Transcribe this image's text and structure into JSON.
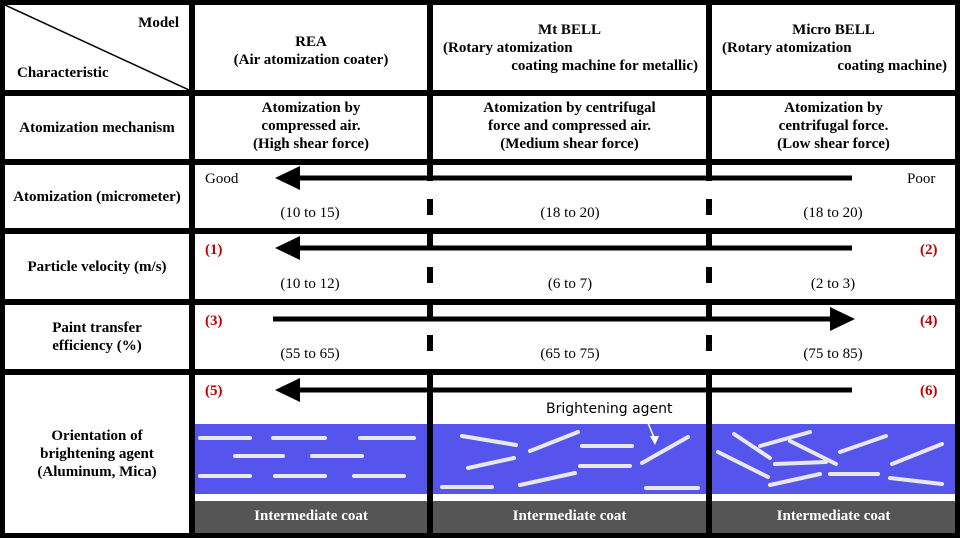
{
  "corner": {
    "top": "Model",
    "bottom": "Characteristic"
  },
  "columns": [
    {
      "name": "REA",
      "sub1": "(Air atomization coater)",
      "sub2": ""
    },
    {
      "name": "Mt BELL",
      "sub1": "(Rotary atomization",
      "sub2": "coating machine for metallic)"
    },
    {
      "name": "Micro BELL",
      "sub1": "(Rotary atomization",
      "sub2": "coating machine)"
    }
  ],
  "rows": [
    {
      "label": "Atomization mechanism"
    },
    {
      "label": "Atomization (micrometer)"
    },
    {
      "label": "Particle velocity (m/s)"
    },
    {
      "label": "Paint transfer efficiency (%)"
    },
    {
      "label": "Orientation of brightening agent (Aluminum, Mica)"
    }
  ],
  "mechanism": [
    [
      "Atomization by",
      "compressed air.",
      "(High shear force)"
    ],
    [
      "Atomization by centrifugal",
      "force and compressed air.",
      "(Medium shear force)"
    ],
    [
      "Atomization by",
      "centrifugal force.",
      "(Low shear force)"
    ]
  ],
  "atomization": {
    "left": "Good",
    "right": "Poor",
    "values": [
      "(10 to 15)",
      "(18 to 20)",
      "(18 to 20)"
    ]
  },
  "velocity": {
    "left": "(1)",
    "right": "(2)",
    "values": [
      "(10 to 12)",
      "(6 to 7)",
      "(2 to 3)"
    ]
  },
  "transfer": {
    "left": "(3)",
    "right": "(4)",
    "values": [
      "(55 to 65)",
      "(65 to 75)",
      "(75 to 85)"
    ]
  },
  "orientation": {
    "left": "(5)",
    "right": "(6)",
    "flake_label": "Brightening agent"
  },
  "intermediate": [
    "Intermediate coat",
    "Intermediate coat",
    "Intermediate coat"
  ],
  "colors": {
    "coat": "#5555ee",
    "marker": "#c00000",
    "base": "#555555"
  }
}
